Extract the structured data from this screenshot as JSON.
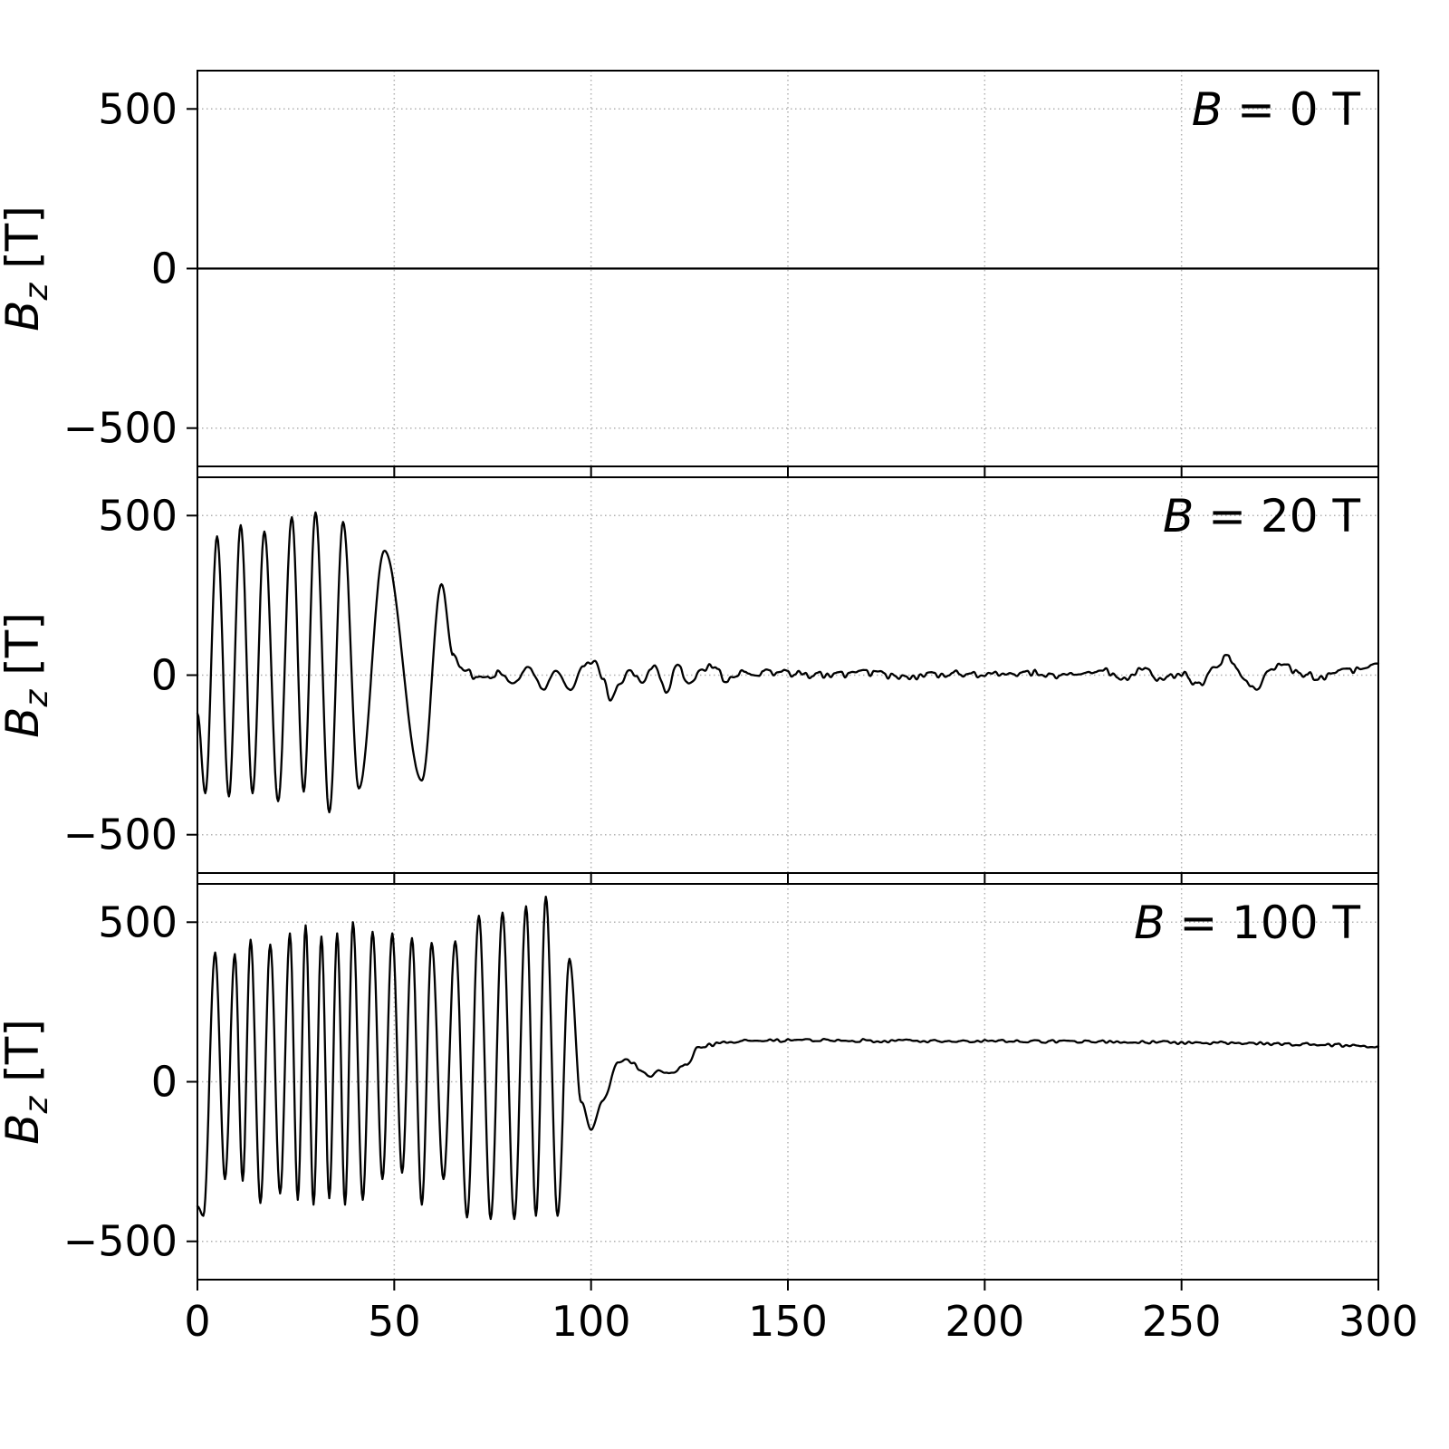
{
  "figure": {
    "background": "#ffffff",
    "line_color": "#000000",
    "grid_color": "#b0b0b0",
    "text_color": "#000000"
  },
  "chart_data": [
    {
      "type": "line",
      "annotation": "B = 0 T",
      "ylabel": "B_z [T]",
      "xlim": [
        0,
        300
      ],
      "ylim": [
        -620,
        620
      ],
      "x_ticks": [
        0,
        50,
        100,
        150,
        200,
        250,
        300
      ],
      "y_ticks": [
        -500,
        0,
        500
      ],
      "x_tick_labels_visible": false,
      "grid": true,
      "series": [
        {
          "name": "Bz",
          "keypoints": [
            [
              0,
              0
            ],
            [
              300,
              0
            ]
          ],
          "noise": []
        }
      ]
    },
    {
      "type": "line",
      "annotation": "B = 20 T",
      "ylabel": "B_z [T]",
      "xlim": [
        0,
        300
      ],
      "ylim": [
        -620,
        620
      ],
      "x_ticks": [
        0,
        50,
        100,
        150,
        200,
        250,
        300
      ],
      "y_ticks": [
        -500,
        0,
        500
      ],
      "x_tick_labels_visible": false,
      "grid": true,
      "series": [
        {
          "name": "Bz",
          "keypoints": [
            [
              0,
              -120
            ],
            [
              2,
              -370
            ],
            [
              5,
              435
            ],
            [
              8,
              -380
            ],
            [
              11,
              470
            ],
            [
              14,
              -370
            ],
            [
              17,
              450
            ],
            [
              20.5,
              -395
            ],
            [
              24,
              495
            ],
            [
              27,
              -365
            ],
            [
              30,
              510
            ],
            [
              33.5,
              -430
            ],
            [
              37,
              480
            ],
            [
              41,
              -355
            ],
            [
              47.5,
              390
            ],
            [
              57,
              -330
            ],
            [
              62,
              285
            ],
            [
              65,
              60
            ],
            [
              68,
              8
            ],
            [
              72,
              -8
            ],
            [
              76,
              5
            ],
            [
              80,
              -25
            ],
            [
              84,
              18
            ],
            [
              88,
              -35
            ],
            [
              91,
              25
            ],
            [
              95,
              -45
            ],
            [
              98,
              28
            ],
            [
              101,
              38
            ],
            [
              103,
              -18
            ],
            [
              105,
              -85
            ],
            [
              107,
              -30
            ],
            [
              110,
              20
            ],
            [
              113,
              -22
            ],
            [
              116,
              35
            ],
            [
              119,
              -55
            ],
            [
              122,
              25
            ],
            [
              125,
              -18
            ],
            [
              128,
              14
            ],
            [
              131,
              28
            ],
            [
              134,
              -12
            ],
            [
              140,
              10
            ],
            [
              150,
              5
            ],
            [
              160,
              0
            ],
            [
              170,
              8
            ],
            [
              180,
              -6
            ],
            [
              190,
              5
            ],
            [
              200,
              0
            ],
            [
              210,
              8
            ],
            [
              220,
              -5
            ],
            [
              230,
              14
            ],
            [
              235,
              -10
            ],
            [
              240,
              18
            ],
            [
              245,
              -14
            ],
            [
              250,
              5
            ],
            [
              255,
              -35
            ],
            [
              258,
              28
            ],
            [
              262,
              55
            ],
            [
              266,
              -18
            ],
            [
              269,
              -45
            ],
            [
              272,
              14
            ],
            [
              276,
              35
            ],
            [
              280,
              5
            ],
            [
              285,
              -6
            ],
            [
              290,
              10
            ],
            [
              295,
              18
            ],
            [
              300,
              28
            ]
          ],
          "noise": [
            [
              65,
              300,
              12
            ]
          ]
        }
      ]
    },
    {
      "type": "line",
      "annotation": "B = 100 T",
      "ylabel": "B_z [T]",
      "xlim": [
        0,
        300
      ],
      "ylim": [
        -620,
        620
      ],
      "x_ticks": [
        0,
        50,
        100,
        150,
        200,
        250,
        300
      ],
      "y_ticks": [
        -500,
        0,
        500
      ],
      "x_tick_labels_visible": true,
      "grid": true,
      "series": [
        {
          "name": "Bz",
          "keypoints": [
            [
              0,
              -390
            ],
            [
              1.5,
              -420
            ],
            [
              4.5,
              405
            ],
            [
              7,
              -305
            ],
            [
              9.5,
              400
            ],
            [
              11.5,
              -310
            ],
            [
              13.5,
              445
            ],
            [
              16,
              -380
            ],
            [
              18.5,
              430
            ],
            [
              21,
              -350
            ],
            [
              23.5,
              465
            ],
            [
              25.5,
              -370
            ],
            [
              27.5,
              490
            ],
            [
              29.5,
              -385
            ],
            [
              31.5,
              455
            ],
            [
              33.5,
              -365
            ],
            [
              35.5,
              465
            ],
            [
              37.5,
              -385
            ],
            [
              39.5,
              500
            ],
            [
              42,
              -370
            ],
            [
              44.5,
              470
            ],
            [
              47,
              -305
            ],
            [
              49.5,
              465
            ],
            [
              52,
              -285
            ],
            [
              54.5,
              450
            ],
            [
              57,
              -385
            ],
            [
              59.5,
              435
            ],
            [
              62.5,
              -305
            ],
            [
              65.5,
              440
            ],
            [
              68.5,
              -425
            ],
            [
              71.5,
              520
            ],
            [
              74.5,
              -430
            ],
            [
              77.5,
              530
            ],
            [
              80.5,
              -430
            ],
            [
              83.5,
              550
            ],
            [
              86,
              -420
            ],
            [
              88.5,
              580
            ],
            [
              91.5,
              -420
            ],
            [
              94.5,
              385
            ],
            [
              97.5,
              -60
            ],
            [
              100,
              -150
            ],
            [
              103,
              -60
            ],
            [
              107,
              60
            ],
            [
              109,
              75
            ],
            [
              111,
              55
            ],
            [
              113,
              28
            ],
            [
              115,
              18
            ],
            [
              117,
              35
            ],
            [
              119,
              24
            ],
            [
              121,
              30
            ],
            [
              123,
              45
            ],
            [
              125,
              60
            ],
            [
              127,
              105
            ],
            [
              130,
              116
            ],
            [
              135,
              125
            ],
            [
              140,
              128
            ],
            [
              160,
              130
            ],
            [
              180,
              128
            ],
            [
              200,
              127
            ],
            [
              220,
              126
            ],
            [
              240,
              124
            ],
            [
              260,
              122
            ],
            [
              280,
              118
            ],
            [
              300,
              112
            ]
          ],
          "noise": [
            [
              97,
              300,
              5
            ]
          ]
        }
      ]
    }
  ]
}
